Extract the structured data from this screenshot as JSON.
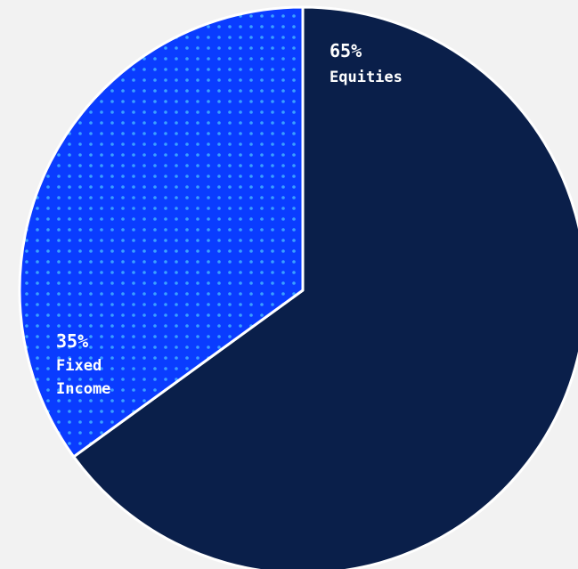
{
  "chart_data": {
    "type": "pie",
    "title": "",
    "slices": [
      {
        "label": "Equities",
        "percent_label": "65%",
        "value": 65,
        "color": "#0a1f4a",
        "pattern": "solid"
      },
      {
        "label": "Fixed Income",
        "percent_label": "35%",
        "value": 35,
        "color": "#0a3cff",
        "dot_color": "#3aa0ff",
        "pattern": "dots"
      }
    ],
    "start_angle": "12 o'clock",
    "direction": "clockwise",
    "legend": "none",
    "labels": "inside-slices"
  },
  "page": {
    "background": "#f2f2f2",
    "slice_border_color": "#ffffff"
  }
}
